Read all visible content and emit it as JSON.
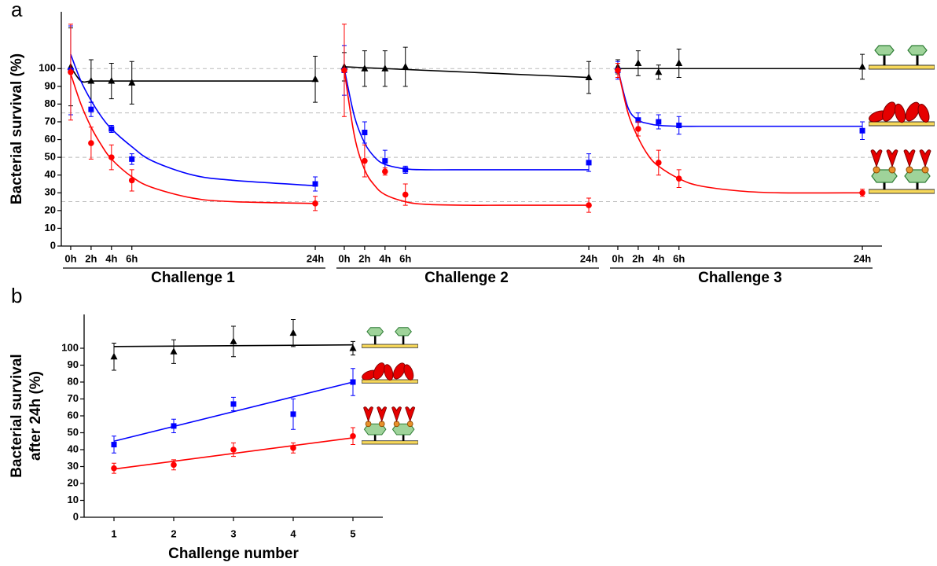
{
  "chart_data": [
    {
      "type": "scatter",
      "label": "a",
      "ylabel": "Bacterial survival (%)",
      "ylim": [
        0,
        132
      ],
      "yticks": [
        0,
        10,
        20,
        30,
        40,
        50,
        60,
        70,
        80,
        90,
        100
      ],
      "hlines": [
        25,
        50,
        75,
        100
      ],
      "groups": [
        {
          "label": "Challenge 1",
          "xlim": [
            -1,
            25
          ],
          "x": [
            0,
            2,
            4,
            6,
            24
          ],
          "xticks": [
            {
              "value": 0,
              "label": "0h"
            },
            {
              "value": 2,
              "label": "2h"
            },
            {
              "value": 4,
              "label": "4h"
            },
            {
              "value": 6,
              "label": "6h"
            },
            {
              "value": 24,
              "label": "24h"
            }
          ],
          "fit_x": [
            0,
            1,
            2,
            3,
            4,
            6,
            8,
            12,
            16,
            24
          ],
          "series": [
            {
              "color": "#000000",
              "marker": "triangle",
              "values": [
                101,
                93,
                93,
                92,
                94
              ],
              "errors": [
                22,
                12,
                10,
                12,
                13
              ],
              "fit_values": [
                101,
                93,
                93,
                93,
                93,
                93,
                93,
                93,
                93,
                93
              ]
            },
            {
              "color": "#0000ff",
              "marker": "square",
              "values": [
                99,
                77,
                66,
                49,
                35
              ],
              "errors": [
                25,
                4,
                2,
                3,
                4
              ],
              "fit_values": [
                108,
                93,
                82,
                73,
                66,
                56,
                48,
                40,
                37,
                34
              ]
            },
            {
              "color": "#ff0000",
              "marker": "circle",
              "values": [
                98,
                58,
                50,
                37,
                24
              ],
              "errors": [
                27,
                9,
                7,
                6,
                4
              ],
              "fit_values": [
                97,
                80,
                67,
                57,
                49,
                39,
                33,
                27,
                25,
                24
              ]
            }
          ]
        },
        {
          "label": "Challenge 2",
          "xlim": [
            -1,
            25
          ],
          "x": [
            0,
            2,
            4,
            6,
            24
          ],
          "xticks": [
            {
              "value": 0,
              "label": "0h"
            },
            {
              "value": 2,
              "label": "2h"
            },
            {
              "value": 4,
              "label": "4h"
            },
            {
              "value": 6,
              "label": "6h"
            },
            {
              "value": 24,
              "label": "24h"
            }
          ],
          "fit_x": [
            0,
            1,
            2,
            3,
            4,
            6,
            8,
            12,
            16,
            24
          ],
          "series": [
            {
              "color": "#000000",
              "marker": "triangle",
              "values": [
                101,
                100,
                100,
                101,
                95
              ],
              "errors": [
                8,
                10,
                10,
                11,
                9
              ],
              "fit_values": [
                101,
                100.75,
                100.5,
                100.25,
                100,
                99.5,
                99,
                98,
                97,
                95
              ]
            },
            {
              "color": "#0000ff",
              "marker": "square",
              "values": [
                99,
                64,
                48,
                43,
                47
              ],
              "errors": [
                14,
                6,
                6,
                2,
                5
              ],
              "fit_values": [
                100,
                73,
                58,
                50,
                46,
                43.5,
                43,
                43,
                43,
                43
              ]
            },
            {
              "color": "#ff0000",
              "marker": "circle",
              "values": [
                99,
                48,
                42,
                29,
                23
              ],
              "errors": [
                26,
                9,
                2,
                6,
                4
              ],
              "fit_values": [
                99,
                62,
                43,
                34,
                29,
                25,
                23.5,
                23,
                23,
                23
              ]
            }
          ]
        },
        {
          "label": "Challenge 3",
          "xlim": [
            -1,
            25
          ],
          "x": [
            0,
            2,
            4,
            6,
            24
          ],
          "xticks": [
            {
              "value": 0,
              "label": "0h"
            },
            {
              "value": 2,
              "label": "2h"
            },
            {
              "value": 4,
              "label": "4h"
            },
            {
              "value": 6,
              "label": "6h"
            },
            {
              "value": 24,
              "label": "24h"
            }
          ],
          "fit_x": [
            0,
            1,
            2,
            3,
            4,
            6,
            8,
            12,
            16,
            24
          ],
          "series": [
            {
              "color": "#000000",
              "marker": "triangle",
              "values": [
                101,
                103,
                98,
                103,
                101
              ],
              "errors": [
                4,
                7,
                4,
                8,
                7
              ],
              "fit_values": [
                100,
                100,
                100,
                100,
                100,
                100,
                100,
                100,
                100,
                100
              ]
            },
            {
              "color": "#0000ff",
              "marker": "square",
              "values": [
                99,
                71,
                70,
                68,
                65
              ],
              "errors": [
                5,
                4,
                4,
                5,
                5
              ],
              "fit_values": [
                100,
                78,
                71,
                69,
                68,
                67.5,
                67.5,
                67.5,
                67.5,
                67.5
              ]
            },
            {
              "color": "#ff0000",
              "marker": "circle",
              "values": [
                99,
                66,
                47,
                38,
                30
              ],
              "errors": [
                4,
                4,
                7,
                5,
                2
              ],
              "fit_values": [
                100,
                75,
                61,
                51,
                45,
                38,
                34,
                31,
                30,
                30
              ]
            }
          ]
        }
      ]
    },
    {
      "type": "scatter",
      "label": "b",
      "ylabel": [
        "Bacterial survival",
        "after 24h (%)"
      ],
      "xlabel": "Challenge number",
      "ylim": [
        0,
        120
      ],
      "yticks": [
        0,
        10,
        20,
        30,
        40,
        50,
        60,
        70,
        80,
        90,
        100
      ],
      "xlim": [
        0.5,
        5.5
      ],
      "xticks": [
        1,
        2,
        3,
        4,
        5
      ],
      "x": [
        1,
        2,
        3,
        4,
        5
      ],
      "fit_x": [
        1,
        5
      ],
      "series": [
        {
          "color": "#000000",
          "marker": "triangle",
          "values": [
            95,
            98,
            104,
            109,
            100
          ],
          "errors": [
            8,
            7,
            9,
            8,
            4
          ],
          "fit_values": [
            101,
            102
          ]
        },
        {
          "color": "#0000ff",
          "marker": "square",
          "values": [
            43,
            54,
            67,
            61,
            80
          ],
          "errors": [
            5,
            4,
            4,
            9,
            8
          ],
          "fit_values": [
            45,
            80
          ]
        },
        {
          "color": "#ff0000",
          "marker": "circle",
          "values": [
            29,
            31,
            40,
            41,
            48
          ],
          "errors": [
            3,
            3,
            4,
            3,
            5
          ],
          "fit_values": [
            28.5,
            47
          ]
        }
      ]
    }
  ]
}
